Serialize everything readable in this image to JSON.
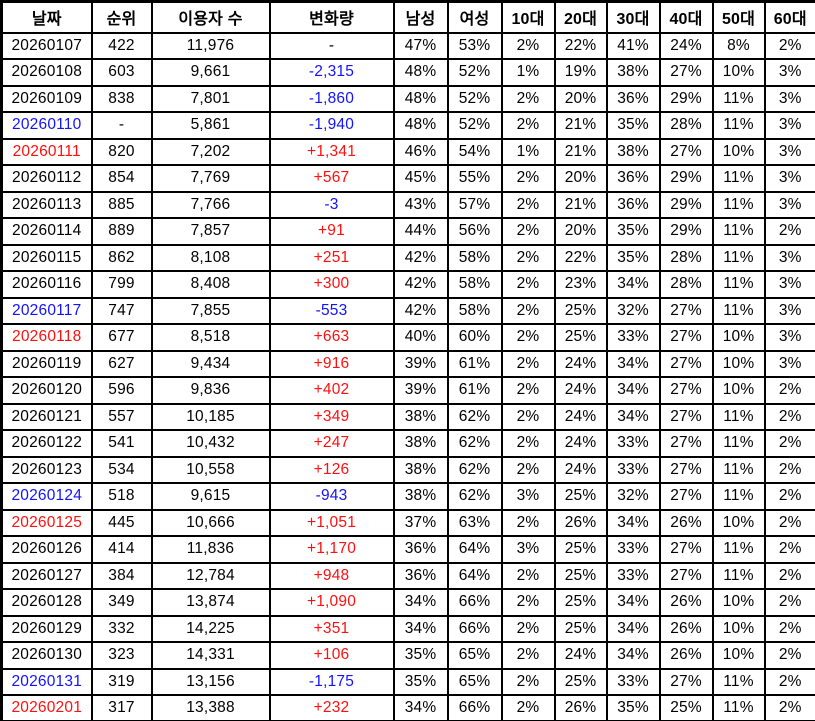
{
  "colors": {
    "red": "#ff0f0f",
    "blue": "#1212ff",
    "default": "#000000",
    "grid": "#000000",
    "background": "#ffffff"
  },
  "chart_data": {
    "type": "table",
    "columns": [
      "날짜",
      "순위",
      "이용자 수",
      "변화량",
      "남성",
      "여성",
      "10대",
      "20대",
      "30대",
      "40대",
      "50대",
      "60대"
    ],
    "rows": [
      {
        "date": "20260107",
        "date_color": "default",
        "rank": "422",
        "users": "11,976",
        "change": "-",
        "change_color": "default",
        "male": "47%",
        "female": "53%",
        "age10": "2%",
        "age20": "22%",
        "age30": "41%",
        "age40": "24%",
        "age50": "8%",
        "age60": "2%"
      },
      {
        "date": "20260108",
        "date_color": "default",
        "rank": "603",
        "users": "9,661",
        "change": "-2,315",
        "change_color": "blue",
        "male": "48%",
        "female": "52%",
        "age10": "1%",
        "age20": "19%",
        "age30": "38%",
        "age40": "27%",
        "age50": "10%",
        "age60": "3%"
      },
      {
        "date": "20260109",
        "date_color": "default",
        "rank": "838",
        "users": "7,801",
        "change": "-1,860",
        "change_color": "blue",
        "male": "48%",
        "female": "52%",
        "age10": "2%",
        "age20": "20%",
        "age30": "36%",
        "age40": "29%",
        "age50": "11%",
        "age60": "3%"
      },
      {
        "date": "20260110",
        "date_color": "blue",
        "rank": "-",
        "users": "5,861",
        "change": "-1,940",
        "change_color": "blue",
        "male": "48%",
        "female": "52%",
        "age10": "2%",
        "age20": "21%",
        "age30": "35%",
        "age40": "28%",
        "age50": "11%",
        "age60": "3%"
      },
      {
        "date": "20260111",
        "date_color": "red",
        "rank": "820",
        "users": "7,202",
        "change": "+1,341",
        "change_color": "red",
        "male": "46%",
        "female": "54%",
        "age10": "1%",
        "age20": "21%",
        "age30": "38%",
        "age40": "27%",
        "age50": "10%",
        "age60": "3%"
      },
      {
        "date": "20260112",
        "date_color": "default",
        "rank": "854",
        "users": "7,769",
        "change": "+567",
        "change_color": "red",
        "male": "45%",
        "female": "55%",
        "age10": "2%",
        "age20": "20%",
        "age30": "36%",
        "age40": "29%",
        "age50": "11%",
        "age60": "3%"
      },
      {
        "date": "20260113",
        "date_color": "default",
        "rank": "885",
        "users": "7,766",
        "change": "-3",
        "change_color": "blue",
        "male": "43%",
        "female": "57%",
        "age10": "2%",
        "age20": "21%",
        "age30": "36%",
        "age40": "29%",
        "age50": "11%",
        "age60": "3%"
      },
      {
        "date": "20260114",
        "date_color": "default",
        "rank": "889",
        "users": "7,857",
        "change": "+91",
        "change_color": "red",
        "male": "44%",
        "female": "56%",
        "age10": "2%",
        "age20": "20%",
        "age30": "35%",
        "age40": "29%",
        "age50": "11%",
        "age60": "2%"
      },
      {
        "date": "20260115",
        "date_color": "default",
        "rank": "862",
        "users": "8,108",
        "change": "+251",
        "change_color": "red",
        "male": "42%",
        "female": "58%",
        "age10": "2%",
        "age20": "22%",
        "age30": "35%",
        "age40": "28%",
        "age50": "11%",
        "age60": "3%"
      },
      {
        "date": "20260116",
        "date_color": "default",
        "rank": "799",
        "users": "8,408",
        "change": "+300",
        "change_color": "red",
        "male": "42%",
        "female": "58%",
        "age10": "2%",
        "age20": "23%",
        "age30": "34%",
        "age40": "28%",
        "age50": "11%",
        "age60": "3%"
      },
      {
        "date": "20260117",
        "date_color": "blue",
        "rank": "747",
        "users": "7,855",
        "change": "-553",
        "change_color": "blue",
        "male": "42%",
        "female": "58%",
        "age10": "2%",
        "age20": "25%",
        "age30": "32%",
        "age40": "27%",
        "age50": "11%",
        "age60": "3%"
      },
      {
        "date": "20260118",
        "date_color": "red",
        "rank": "677",
        "users": "8,518",
        "change": "+663",
        "change_color": "red",
        "male": "40%",
        "female": "60%",
        "age10": "2%",
        "age20": "25%",
        "age30": "33%",
        "age40": "27%",
        "age50": "10%",
        "age60": "3%"
      },
      {
        "date": "20260119",
        "date_color": "default",
        "rank": "627",
        "users": "9,434",
        "change": "+916",
        "change_color": "red",
        "male": "39%",
        "female": "61%",
        "age10": "2%",
        "age20": "24%",
        "age30": "34%",
        "age40": "27%",
        "age50": "10%",
        "age60": "3%"
      },
      {
        "date": "20260120",
        "date_color": "default",
        "rank": "596",
        "users": "9,836",
        "change": "+402",
        "change_color": "red",
        "male": "39%",
        "female": "61%",
        "age10": "2%",
        "age20": "24%",
        "age30": "34%",
        "age40": "27%",
        "age50": "10%",
        "age60": "2%"
      },
      {
        "date": "20260121",
        "date_color": "default",
        "rank": "557",
        "users": "10,185",
        "change": "+349",
        "change_color": "red",
        "male": "38%",
        "female": "62%",
        "age10": "2%",
        "age20": "24%",
        "age30": "34%",
        "age40": "27%",
        "age50": "11%",
        "age60": "2%"
      },
      {
        "date": "20260122",
        "date_color": "default",
        "rank": "541",
        "users": "10,432",
        "change": "+247",
        "change_color": "red",
        "male": "38%",
        "female": "62%",
        "age10": "2%",
        "age20": "24%",
        "age30": "33%",
        "age40": "27%",
        "age50": "11%",
        "age60": "2%"
      },
      {
        "date": "20260123",
        "date_color": "default",
        "rank": "534",
        "users": "10,558",
        "change": "+126",
        "change_color": "red",
        "male": "38%",
        "female": "62%",
        "age10": "2%",
        "age20": "24%",
        "age30": "33%",
        "age40": "27%",
        "age50": "11%",
        "age60": "2%"
      },
      {
        "date": "20260124",
        "date_color": "blue",
        "rank": "518",
        "users": "9,615",
        "change": "-943",
        "change_color": "blue",
        "male": "38%",
        "female": "62%",
        "age10": "3%",
        "age20": "25%",
        "age30": "32%",
        "age40": "27%",
        "age50": "11%",
        "age60": "2%"
      },
      {
        "date": "20260125",
        "date_color": "red",
        "rank": "445",
        "users": "10,666",
        "change": "+1,051",
        "change_color": "red",
        "male": "37%",
        "female": "63%",
        "age10": "2%",
        "age20": "26%",
        "age30": "34%",
        "age40": "26%",
        "age50": "10%",
        "age60": "2%"
      },
      {
        "date": "20260126",
        "date_color": "default",
        "rank": "414",
        "users": "11,836",
        "change": "+1,170",
        "change_color": "red",
        "male": "36%",
        "female": "64%",
        "age10": "3%",
        "age20": "25%",
        "age30": "33%",
        "age40": "27%",
        "age50": "11%",
        "age60": "2%"
      },
      {
        "date": "20260127",
        "date_color": "default",
        "rank": "384",
        "users": "12,784",
        "change": "+948",
        "change_color": "red",
        "male": "36%",
        "female": "64%",
        "age10": "2%",
        "age20": "25%",
        "age30": "33%",
        "age40": "27%",
        "age50": "11%",
        "age60": "2%"
      },
      {
        "date": "20260128",
        "date_color": "default",
        "rank": "349",
        "users": "13,874",
        "change": "+1,090",
        "change_color": "red",
        "male": "34%",
        "female": "66%",
        "age10": "2%",
        "age20": "25%",
        "age30": "34%",
        "age40": "26%",
        "age50": "10%",
        "age60": "2%"
      },
      {
        "date": "20260129",
        "date_color": "default",
        "rank": "332",
        "users": "14,225",
        "change": "+351",
        "change_color": "red",
        "male": "34%",
        "female": "66%",
        "age10": "2%",
        "age20": "25%",
        "age30": "34%",
        "age40": "26%",
        "age50": "10%",
        "age60": "2%"
      },
      {
        "date": "20260130",
        "date_color": "default",
        "rank": "323",
        "users": "14,331",
        "change": "+106",
        "change_color": "red",
        "male": "35%",
        "female": "65%",
        "age10": "2%",
        "age20": "24%",
        "age30": "34%",
        "age40": "26%",
        "age50": "10%",
        "age60": "2%"
      },
      {
        "date": "20260131",
        "date_color": "blue",
        "rank": "319",
        "users": "13,156",
        "change": "-1,175",
        "change_color": "blue",
        "male": "35%",
        "female": "65%",
        "age10": "2%",
        "age20": "25%",
        "age30": "33%",
        "age40": "27%",
        "age50": "11%",
        "age60": "2%"
      },
      {
        "date": "20260201",
        "date_color": "red",
        "rank": "317",
        "users": "13,388",
        "change": "+232",
        "change_color": "red",
        "male": "34%",
        "female": "66%",
        "age10": "2%",
        "age20": "26%",
        "age30": "35%",
        "age40": "25%",
        "age50": "11%",
        "age60": "2%"
      }
    ]
  }
}
